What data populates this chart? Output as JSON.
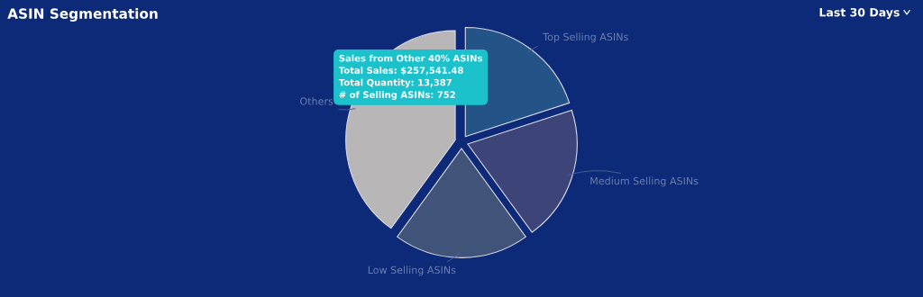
{
  "chart_data": {
    "type": "pie",
    "title": "ASIN Segmentation",
    "categories": [
      "Top Selling ASINs",
      "Medium Selling ASINs",
      "Low Selling ASINs",
      "Others"
    ],
    "values": [
      20,
      20,
      20,
      40
    ],
    "colors": [
      "#245487",
      "#3c4478",
      "#3f5478",
      "#b8b6b6"
    ],
    "legend": false,
    "annotations": [
      "Last 30 Days",
      "Sales from Other 40% ASINs",
      "Total Sales: $257,541.48",
      "Total Quantity: 13,387",
      "# of Selling ASINs: 752"
    ]
  }
}
